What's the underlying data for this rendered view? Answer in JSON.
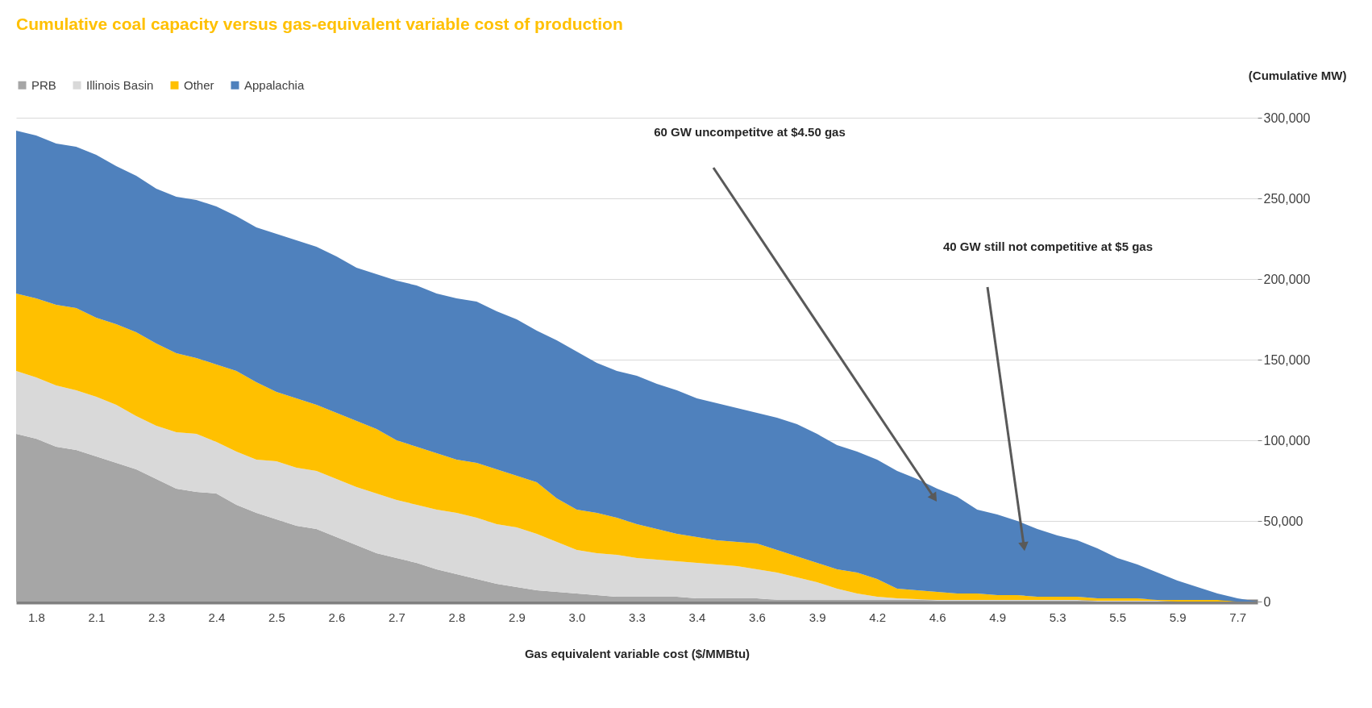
{
  "chart_data": {
    "type": "area",
    "stacked": true,
    "title": "Cumulative coal capacity versus gas-equivalent variable cost of production",
    "xlabel": "Gas equivalent  variable cost ($/MMBtu)",
    "ylabel": "(Cumulative MW)",
    "categories": [
      null,
      "1.8",
      null,
      null,
      "2.1",
      null,
      null,
      "2.3",
      null,
      null,
      "2.4",
      null,
      null,
      "2.5",
      null,
      null,
      "2.6",
      null,
      null,
      "2.7",
      null,
      null,
      "2.8",
      null,
      null,
      "2.9",
      null,
      null,
      "3.0",
      null,
      null,
      "3.3",
      null,
      null,
      "3.4",
      null,
      null,
      "3.6",
      null,
      null,
      "3.9",
      null,
      null,
      "4.2",
      null,
      null,
      "4.6",
      null,
      null,
      "4.9",
      null,
      null,
      "5.3",
      null,
      null,
      "5.5",
      null,
      null,
      "5.9",
      null,
      null,
      "7.7",
      null
    ],
    "series": [
      {
        "name": "PRB",
        "color": "#a6a6a6",
        "values": [
          104000,
          101000,
          96000,
          94000,
          90000,
          86000,
          82000,
          76000,
          70000,
          68000,
          67000,
          60000,
          55000,
          51000,
          47000,
          45000,
          40000,
          35000,
          30000,
          27000,
          24000,
          20000,
          17000,
          14000,
          11000,
          9000,
          7000,
          6000,
          5000,
          4000,
          3000,
          3000,
          3000,
          3000,
          2000,
          2000,
          2000,
          2000,
          1000,
          1000,
          1000,
          1000,
          1000,
          1000,
          1000,
          1000,
          500,
          500,
          500,
          500,
          500,
          500,
          500,
          500,
          0,
          0,
          0,
          0,
          0,
          0,
          0,
          0,
          0
        ]
      },
      {
        "name": "Illinois Basin",
        "color": "#d9d9d9",
        "values": [
          39000,
          38000,
          38000,
          37000,
          37000,
          36000,
          33000,
          33000,
          35000,
          36000,
          32000,
          33000,
          33000,
          36000,
          36000,
          36000,
          36000,
          36000,
          37000,
          36000,
          36000,
          37000,
          38000,
          38000,
          37000,
          37000,
          35000,
          31000,
          27000,
          26000,
          26000,
          24000,
          23000,
          22000,
          22000,
          21000,
          20000,
          18000,
          17000,
          14000,
          11000,
          7000,
          4000,
          2000,
          1000,
          500,
          500,
          500,
          500,
          500,
          500,
          500,
          500,
          500,
          500,
          500,
          500,
          500,
          0,
          0,
          0,
          0,
          0
        ]
      },
      {
        "name": "Other",
        "color": "#ffc000",
        "values": [
          48000,
          49000,
          50000,
          51000,
          49000,
          50000,
          52000,
          51000,
          49000,
          47000,
          48000,
          50000,
          48000,
          43000,
          43000,
          41000,
          41000,
          41000,
          40000,
          37000,
          36000,
          35000,
          33000,
          34000,
          34000,
          32000,
          32000,
          27000,
          25000,
          25000,
          23000,
          21000,
          19000,
          17000,
          16000,
          15000,
          15000,
          16000,
          14000,
          13000,
          12000,
          12000,
          13000,
          11000,
          6000,
          5500,
          5000,
          4000,
          4000,
          3000,
          3000,
          2000,
          2000,
          2000,
          1500,
          1500,
          1500,
          500,
          1000,
          1000,
          1000,
          0,
          0
        ]
      },
      {
        "name": "Appalachia",
        "color": "#4f81bd",
        "values": [
          101000,
          101000,
          100000,
          100000,
          101000,
          98000,
          97000,
          96000,
          97000,
          98000,
          98000,
          96000,
          96000,
          98000,
          98000,
          98000,
          97000,
          95000,
          96000,
          99000,
          100000,
          99000,
          100000,
          100000,
          98000,
          97000,
          94000,
          98000,
          98000,
          93000,
          91000,
          92000,
          90000,
          89000,
          86000,
          85000,
          83000,
          81000,
          82000,
          82000,
          80000,
          77000,
          75000,
          74000,
          73000,
          69000,
          64000,
          60000,
          52000,
          50000,
          46000,
          42000,
          38000,
          35000,
          31000,
          25000,
          21000,
          17000,
          12000,
          8000,
          4000,
          2000,
          0
        ]
      }
    ],
    "ylim": [
      0,
      300000
    ],
    "yticks": [
      0,
      {
        "value": 50000,
        "label": "50,000"
      },
      {
        "value": 100000,
        "label": "100,000"
      },
      {
        "value": 150000,
        "label": "150,000"
      },
      {
        "value": 200000,
        "label": "200,000"
      },
      {
        "value": 250000,
        "label": "250,000"
      },
      {
        "value": 300000,
        "label": "300,000"
      }
    ],
    "grid": "y",
    "legend": "top left",
    "annotations": [
      "60 GW uncompetitve at $4.50 gas",
      "40 GW still not competitive  at $5 gas"
    ]
  }
}
